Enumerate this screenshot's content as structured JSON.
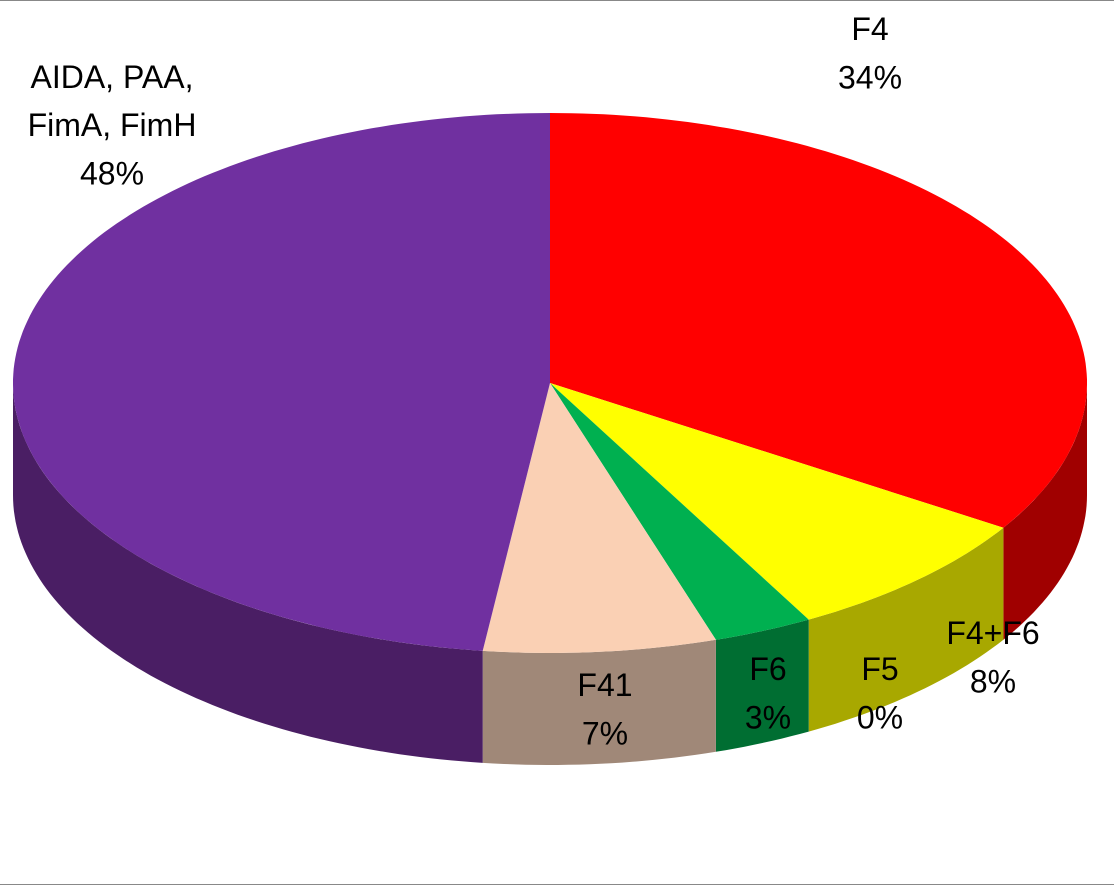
{
  "chart_data": {
    "type": "pie",
    "categories": [
      "F4",
      "F4+F6",
      "F5",
      "F6",
      "F41",
      "AIDA, PAA, FimA, FimH"
    ],
    "values": [
      34,
      8,
      0,
      3,
      7,
      48
    ],
    "value_labels": [
      "34%",
      "8%",
      "0%",
      "3%",
      "7%",
      "48%"
    ],
    "colors": [
      "#ff0000",
      "#ffff00",
      "#4f81bd",
      "#00b050",
      "#fad0b4",
      "#7030a0"
    ],
    "side_colors": [
      "#a00000",
      "#a8a800",
      "#2f4d71",
      "#006e32",
      "#a08878",
      "#4a1e64"
    ]
  }
}
